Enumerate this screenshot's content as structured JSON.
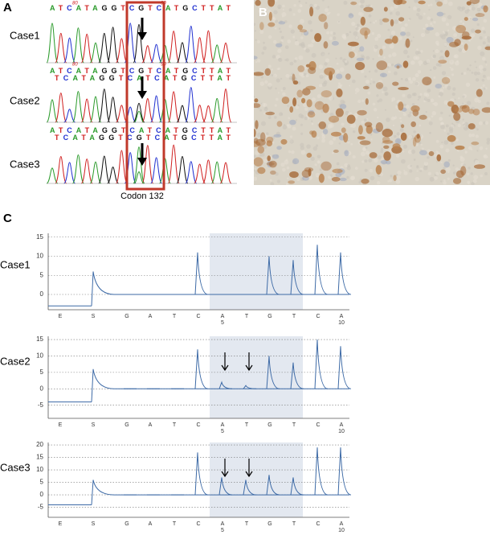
{
  "panel_a": {
    "label": "A",
    "codon_label": "Codon 132",
    "cases": [
      {
        "name": "Case1",
        "positions": [
          80,
          90
        ],
        "calls": [
          "ATCATAGGTCGTCATGCTTAT"
        ]
      },
      {
        "name": "Case2",
        "positions": [
          80,
          90
        ],
        "calls": [
          "ATCATAGGTCGTCATGCTTAT",
          "TCATAGGTCATCATGCTTAT"
        ]
      },
      {
        "name": "Case3",
        "calls": [
          "ATCATAGGTCATCATGCTTAT",
          "TCATAGGTCGTCATGCTTAT"
        ]
      }
    ]
  },
  "panel_b": {
    "label": "B"
  },
  "panel_c": {
    "label": "C",
    "dispensation": [
      {
        "base": "E"
      },
      {
        "base": "S"
      },
      {
        "base": "G"
      },
      {
        "base": "A"
      },
      {
        "base": "T"
      },
      {
        "base": "C"
      },
      {
        "base": "A",
        "number": 5
      },
      {
        "base": "T"
      },
      {
        "base": "G"
      },
      {
        "base": "T"
      },
      {
        "base": "C"
      },
      {
        "base": "A",
        "number": 10
      }
    ],
    "cases": [
      {
        "name": "Case1",
        "ylim": [
          -4,
          16
        ],
        "yticks": [
          0,
          5,
          10,
          15
        ],
        "values": [
          -3,
          6,
          0,
          0,
          0,
          11,
          0,
          0,
          10,
          9,
          13,
          11
        ]
      },
      {
        "name": "Case2",
        "ylim": [
          -9,
          16
        ],
        "yticks": [
          -5,
          0,
          5,
          10,
          15
        ],
        "values": [
          -4,
          6,
          0,
          0,
          0,
          12,
          2,
          1,
          10,
          8,
          15,
          13
        ]
      },
      {
        "name": "Case3",
        "ylim": [
          -9,
          21
        ],
        "yticks": [
          -5,
          0,
          5,
          10,
          15,
          20
        ],
        "values": [
          -4,
          6,
          0,
          0,
          0,
          17,
          7,
          6,
          8,
          7,
          19,
          19
        ]
      }
    ]
  }
}
